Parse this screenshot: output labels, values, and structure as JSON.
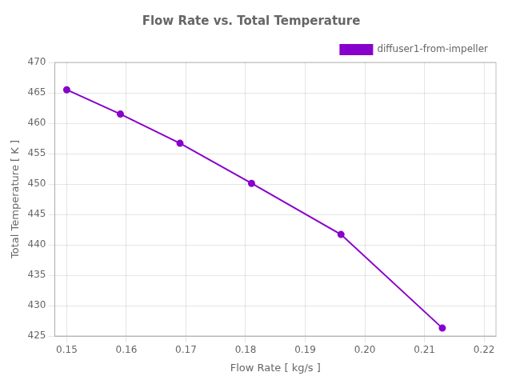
{
  "chart_data": {
    "type": "line",
    "title": "Flow Rate vs. Total Temperature",
    "xlabel": "Flow Rate [ kg/s ]",
    "ylabel": "Total Temperature [ K ]",
    "x": [
      0.15,
      0.159,
      0.169,
      0.181,
      0.196,
      0.213
    ],
    "series": [
      {
        "name": "diffuser1-from-impeller",
        "color": "#8800cc",
        "marker": "circle",
        "values": [
          465.5,
          461.5,
          456.7,
          450.1,
          441.7,
          426.3
        ]
      }
    ],
    "xlim": [
      0.148,
      0.222
    ],
    "ylim": [
      425,
      470
    ],
    "xticks": [
      0.15,
      0.16,
      0.17,
      0.18,
      0.19,
      {
        "value": 0.2,
        "label": "0.20"
      },
      0.21,
      0.22
    ],
    "yticks": [
      425,
      430,
      435,
      440,
      445,
      450,
      455,
      460,
      465,
      470
    ],
    "grid": true,
    "legend": "upper right"
  }
}
